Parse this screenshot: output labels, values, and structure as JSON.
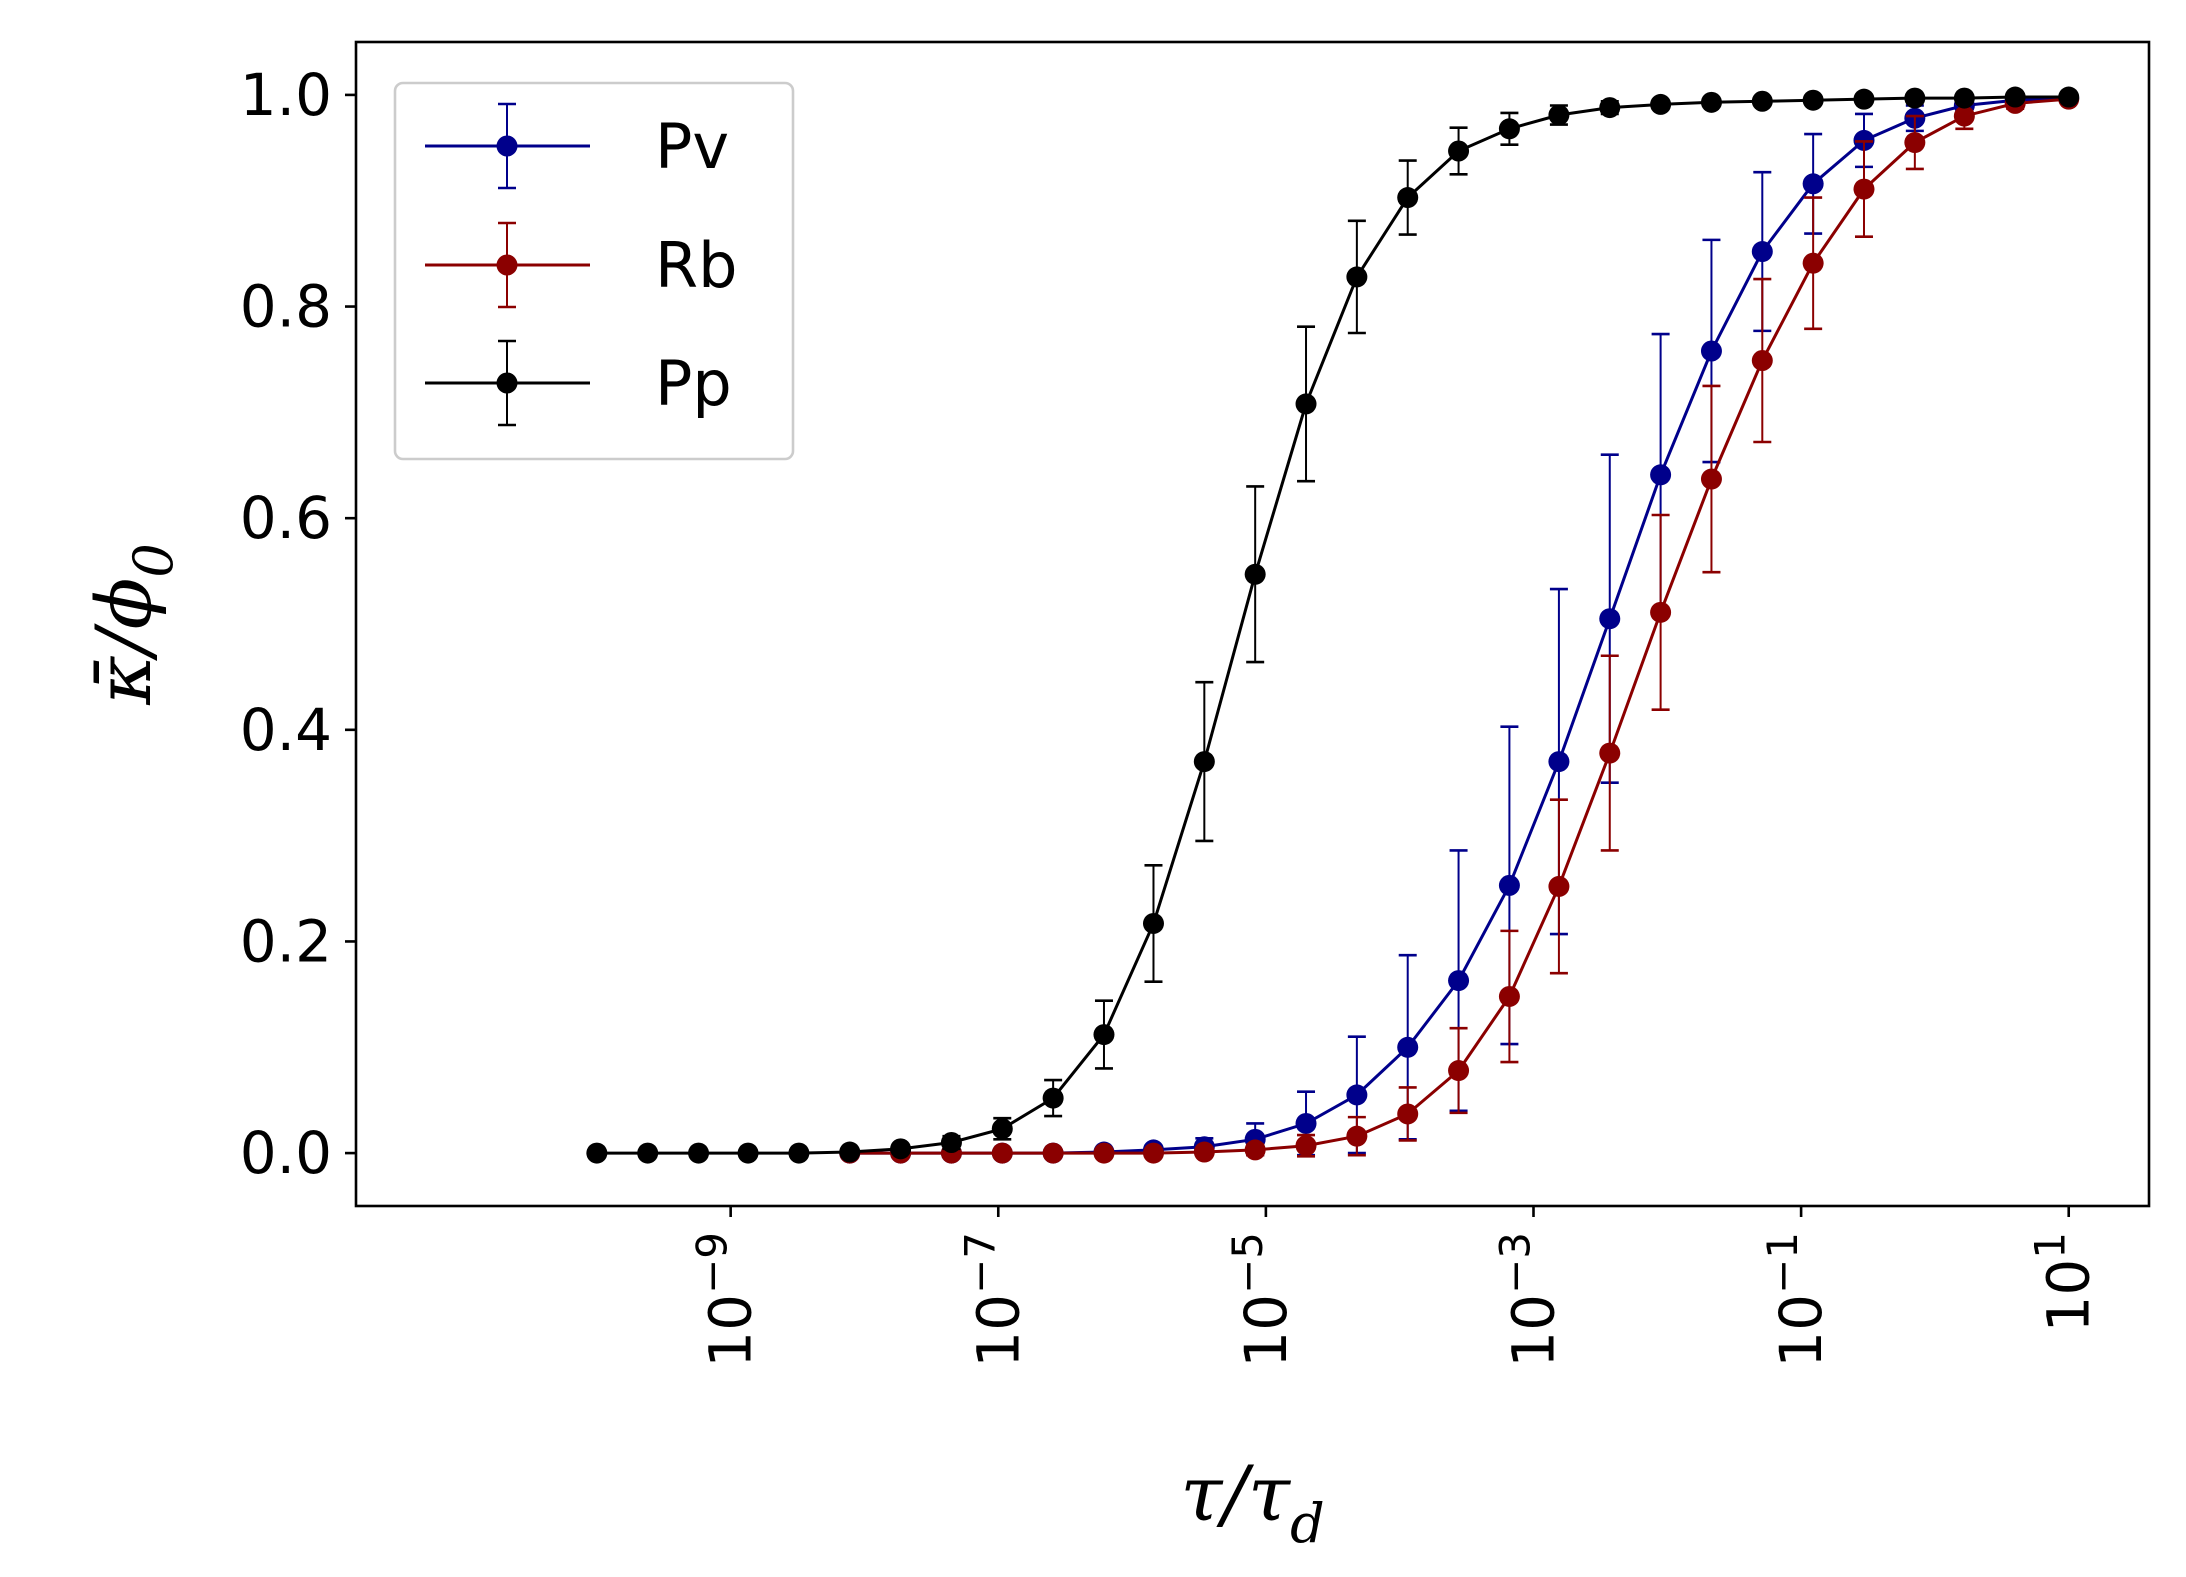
{
  "chart_data": {
    "type": "line",
    "title": "",
    "xlabel_html": "τ/τ_d",
    "ylabel_html": "κ̄/ϕ_0",
    "xscale": "log",
    "xlim_log10": [
      -11.8,
      1.6
    ],
    "ylim": [
      -0.05,
      1.05
    ],
    "yticks": [
      "0.0",
      "0.2",
      "0.4",
      "0.6",
      "0.8",
      "1.0"
    ],
    "xticks": [
      {
        "base": "10",
        "exp": "−9"
      },
      {
        "base": "10",
        "exp": "−7"
      },
      {
        "base": "10",
        "exp": "−5"
      },
      {
        "base": "10",
        "exp": "−3"
      },
      {
        "base": "10",
        "exp": "−1"
      },
      {
        "base": "10",
        "exp": "1"
      }
    ],
    "legend": {
      "position": "top-left",
      "entries": [
        "Pv",
        "Rb",
        "Pp"
      ]
    },
    "x_log10": [
      -10.0,
      -9.62,
      -9.24,
      -8.87,
      -8.49,
      -8.11,
      -7.73,
      -7.35,
      -6.97,
      -6.59,
      -6.21,
      -5.84,
      -5.46,
      -5.08,
      -4.7,
      -4.32,
      -3.94,
      -3.56,
      -3.18,
      -2.81,
      -2.43,
      -2.05,
      -1.67,
      -1.29,
      -0.91,
      -0.53,
      -0.15,
      0.22,
      0.6,
      1.0
    ],
    "series": [
      {
        "name": "Pv",
        "color": "#00008b",
        "x_start_index": 5,
        "values": [
          0.0,
          0.0,
          0.0,
          0.0,
          0.0,
          0.001,
          0.003,
          0.006,
          0.013,
          0.028,
          0.055,
          0.1,
          0.163,
          0.253,
          0.37,
          0.505,
          0.641,
          0.758,
          0.852,
          0.916,
          0.957,
          0.978,
          0.99,
          0.995,
          0.997
        ],
        "err": [
          0.0,
          0.0,
          0.0,
          0.0,
          0.0,
          0.002,
          0.004,
          0.008,
          0.015,
          0.03,
          0.055,
          0.087,
          0.123,
          0.15,
          0.163,
          0.155,
          0.133,
          0.105,
          0.075,
          0.047,
          0.025,
          0.012,
          0.005,
          0.002,
          0.001
        ]
      },
      {
        "name": "Rb",
        "color": "#8b0000",
        "x_start_index": 5,
        "values": [
          0.0,
          0.0,
          0.0,
          0.0,
          0.0,
          0.0,
          0.0,
          0.001,
          0.003,
          0.007,
          0.016,
          0.037,
          0.078,
          0.148,
          0.252,
          0.378,
          0.511,
          0.637,
          0.749,
          0.841,
          0.911,
          0.955,
          0.98,
          0.992,
          0.996
        ],
        "err": [
          0.0,
          0.0,
          0.0,
          0.0,
          0.0,
          0.0,
          0.0,
          0.002,
          0.005,
          0.01,
          0.018,
          0.025,
          0.04,
          0.062,
          0.082,
          0.092,
          0.092,
          0.088,
          0.077,
          0.062,
          0.045,
          0.025,
          0.012,
          0.005,
          0.002
        ]
      },
      {
        "name": "Pp",
        "color": "#000000",
        "x_start_index": 0,
        "values": [
          0.0,
          0.0,
          0.0,
          0.0,
          0.0,
          0.001,
          0.004,
          0.01,
          0.023,
          0.052,
          0.112,
          0.217,
          0.37,
          0.547,
          0.708,
          0.828,
          0.903,
          0.947,
          0.968,
          0.981,
          0.988,
          0.991,
          0.993,
          0.994,
          0.995,
          0.996,
          0.997,
          0.997,
          0.998,
          0.998
        ],
        "err": [
          0.0,
          0.0,
          0.0,
          0.0,
          0.0,
          0.002,
          0.004,
          0.006,
          0.01,
          0.017,
          0.032,
          0.055,
          0.075,
          0.083,
          0.073,
          0.053,
          0.035,
          0.022,
          0.015,
          0.009,
          0.006,
          0.004,
          0.003,
          0.002,
          0.002,
          0.001,
          0.001,
          0.001,
          0.001,
          0.001
        ]
      }
    ]
  }
}
